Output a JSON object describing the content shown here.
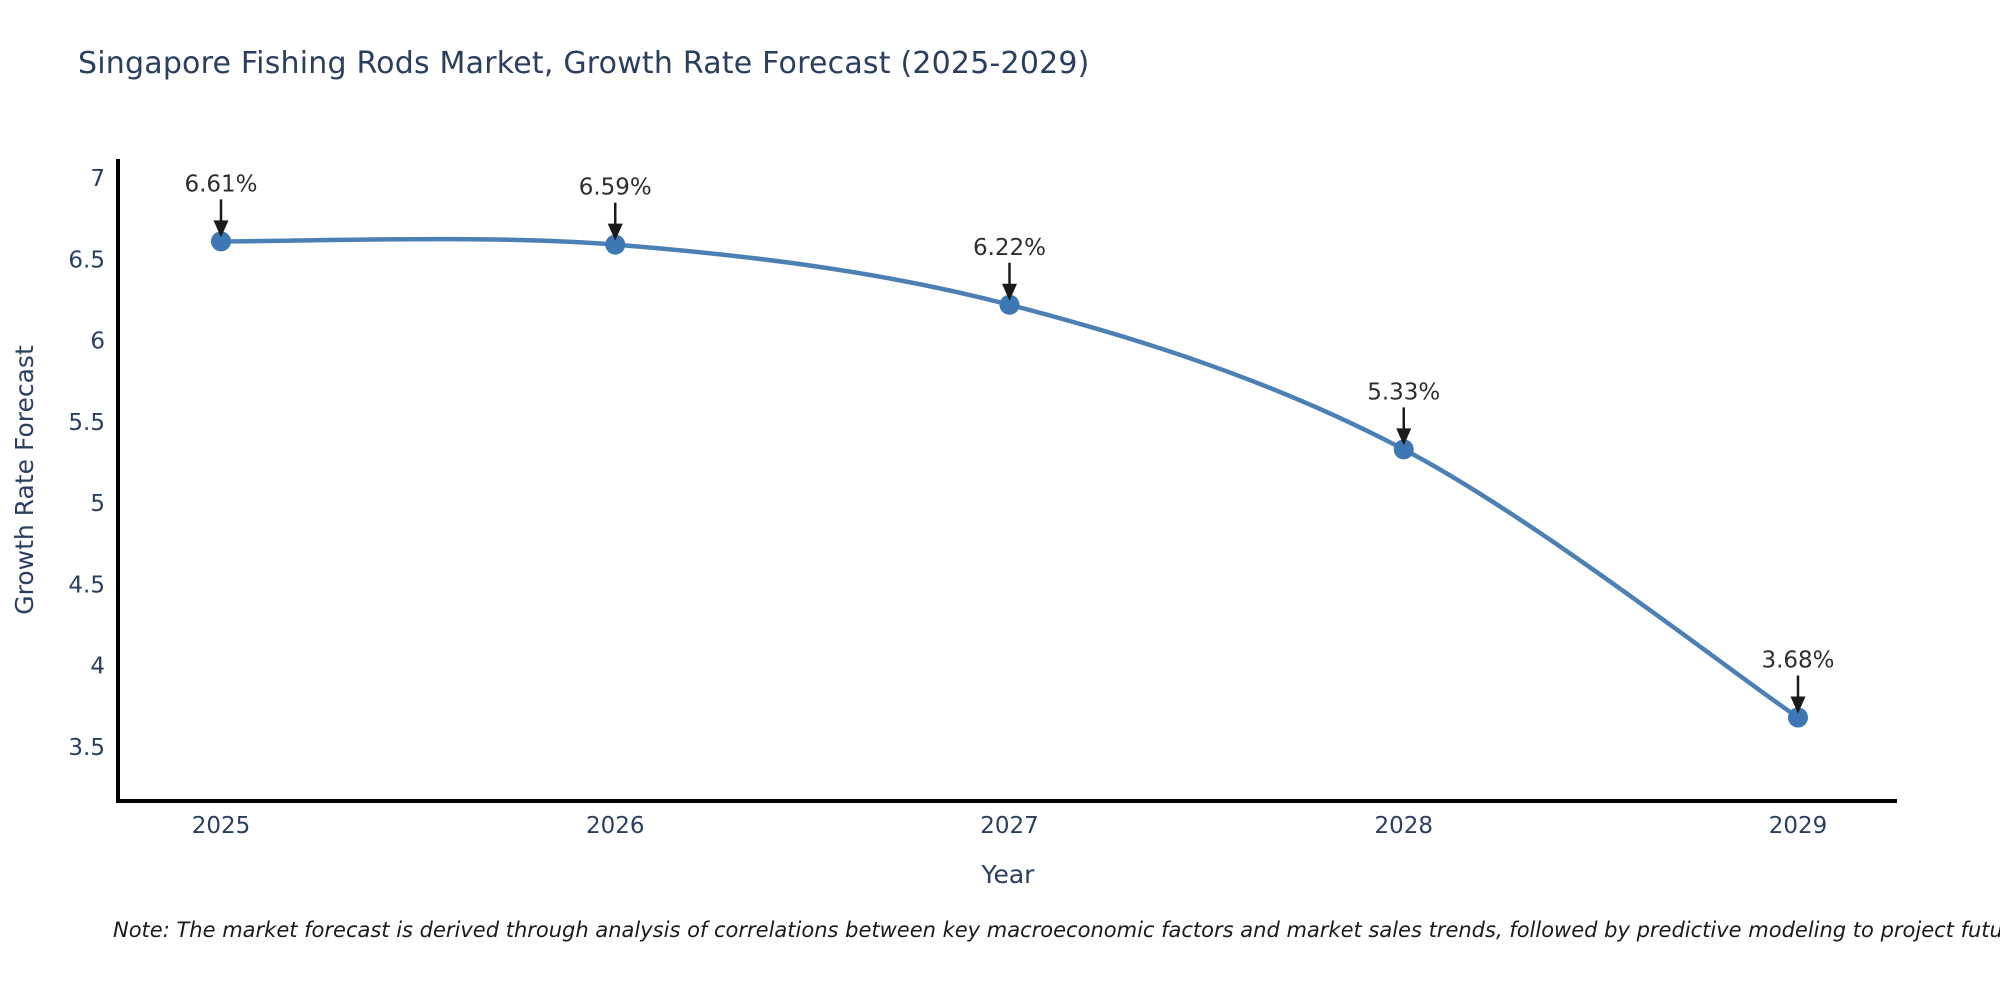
{
  "note": "Note: The market forecast is derived through analysis of correlations between key macroeconomic factors and market sales trends, followed by predictive modeling to project future sales",
  "chart_data": {
    "type": "line",
    "title": "Singapore Fishing Rods Market, Growth Rate Forecast (2025-2029)",
    "xlabel": "Year",
    "ylabel": "Growth Rate Forecast",
    "x": [
      2025,
      2026,
      2027,
      2028,
      2029
    ],
    "series": [
      {
        "name": "Growth Rate Forecast",
        "values": [
          6.61,
          6.59,
          6.22,
          5.33,
          3.68
        ]
      }
    ],
    "point_labels": [
      "6.61%",
      "6.59%",
      "6.22%",
      "5.33%",
      "3.68%"
    ],
    "yticks": [
      3.5,
      4,
      4.5,
      5,
      5.5,
      6,
      6.5,
      7
    ],
    "ylim": [
      3.17,
      7.17
    ],
    "grid": false,
    "legend": false,
    "line_shape": "spline",
    "colors": {
      "line": "#4c80b4",
      "marker": "#3d78b4",
      "axis": "#000000",
      "tick_text": "#2a3f5f",
      "annotation_text": "#2e2e2e",
      "annotation_arrow": "#1a1a1a"
    }
  }
}
